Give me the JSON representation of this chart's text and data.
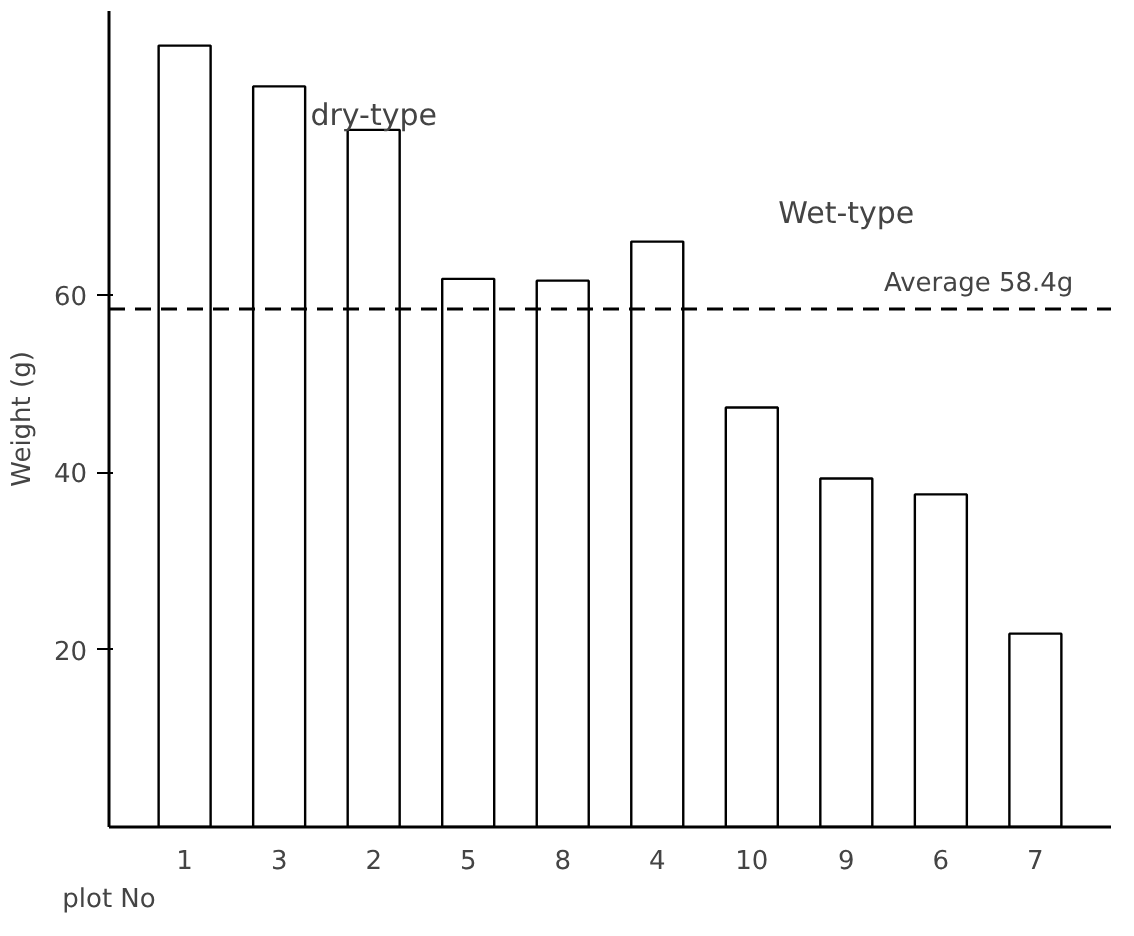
{
  "chart_data": {
    "type": "bar",
    "ylabel": "Weight (g)",
    "xlabel": "plot No",
    "categories": [
      "1",
      "3",
      "2",
      "5",
      "8",
      "4",
      "10",
      "9",
      "6",
      "7"
    ],
    "values": [
      88.1,
      83.5,
      78.6,
      61.8,
      61.6,
      66.0,
      47.3,
      39.3,
      37.5,
      21.8
    ],
    "color": "#ffffff",
    "ylim": [
      0,
      92
    ],
    "yticks": [
      20,
      40,
      60
    ],
    "ref_lines": [
      {
        "axis": "y",
        "value": 58.4,
        "label": "Average 58.4g",
        "line_style": "dashed",
        "color": "#000000"
      }
    ],
    "annotations": [
      "dry-type",
      "Wet-type"
    ],
    "grid": false
  }
}
